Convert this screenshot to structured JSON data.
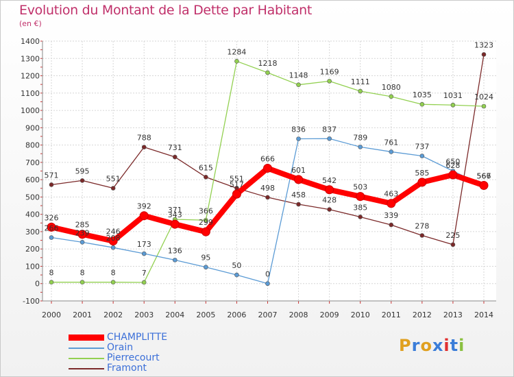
{
  "header": {
    "title": "Evolution du Montant de la Dette par Habitant",
    "unit": "(en €)"
  },
  "logo": {
    "text": "Proxiti"
  },
  "chart_data": {
    "type": "line",
    "title": "Evolution du Montant de la Dette par Habitant",
    "ylabel": "(en €)",
    "xlabel": "",
    "ylim": [
      -100,
      1400
    ],
    "y_ticks": [
      -100,
      0,
      100,
      200,
      300,
      400,
      500,
      600,
      700,
      800,
      900,
      1000,
      1100,
      1200,
      1300,
      1400
    ],
    "categories": [
      "2000",
      "2001",
      "2002",
      "2003",
      "2004",
      "2005",
      "2006",
      "2007",
      "2008",
      "2009",
      "2010",
      "2011",
      "2012",
      "2013",
      "2014"
    ],
    "grid": true,
    "legend_position": "bottom-left",
    "series": [
      {
        "name": "CHAMPLITTE",
        "color": "#ff0000",
        "values": [
          326,
          285,
          246,
          392,
          343,
          299,
          517,
          666,
          601,
          542,
          503,
          463,
          585,
          628,
          567
        ],
        "labels": [
          "326",
          "285",
          "246",
          "392",
          "343",
          "299",
          "517",
          "666",
          "601",
          "542",
          "503",
          "463",
          "585",
          "628",
          "567"
        ]
      },
      {
        "name": "Orain",
        "color": "#5b9bd5",
        "values": [
          266,
          239,
          208,
          173,
          136,
          95,
          50,
          0,
          836,
          837,
          789,
          761,
          737,
          650,
          566
        ],
        "labels": [
          "266",
          "239",
          "208",
          "173",
          "136",
          "95",
          "50",
          "0",
          "836",
          "837",
          "789",
          "761",
          "737",
          "650",
          "566"
        ]
      },
      {
        "name": "Pierrecourt",
        "color": "#92d050",
        "values": [
          8,
          8,
          8,
          7,
          371,
          366,
          1284,
          1218,
          1148,
          1169,
          1111,
          1080,
          1035,
          1031,
          1024
        ],
        "labels": [
          "8",
          "8",
          "8",
          "7",
          "371",
          "366",
          "1284",
          "1218",
          "1148",
          "1169",
          "1111",
          "1080",
          "1035",
          "1031",
          "1024"
        ]
      },
      {
        "name": "Framont",
        "color": "#7b2929",
        "values": [
          571,
          595,
          551,
          788,
          731,
          615,
          551,
          498,
          458,
          428,
          385,
          339,
          278,
          225,
          1323
        ],
        "labels": [
          "571",
          "595",
          "551",
          "788",
          "731",
          "615",
          "551",
          "498",
          "458",
          "428",
          "385",
          "339",
          "278",
          "225",
          "1323"
        ]
      }
    ]
  }
}
